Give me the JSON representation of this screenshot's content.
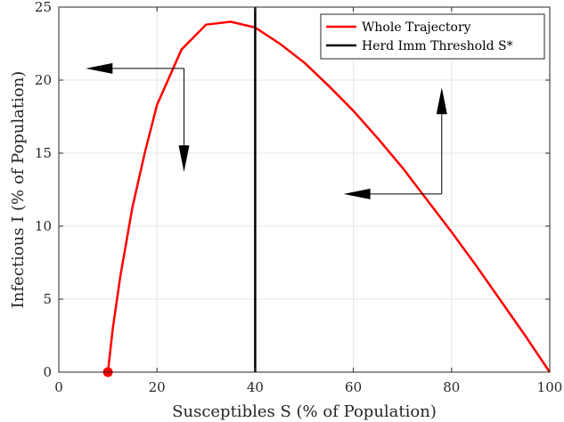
{
  "chart_data": {
    "type": "line",
    "xlabel": "Susceptibles S (% of Population)",
    "ylabel": "Infectious I (% of Population)",
    "xlim": [
      0,
      100
    ],
    "ylim": [
      0,
      25
    ],
    "x_ticks": [
      "0",
      "20",
      "40",
      "60",
      "80",
      "100"
    ],
    "y_ticks": [
      "0",
      "5",
      "10",
      "15",
      "20",
      "25"
    ],
    "grid": true,
    "legend_position": "top-right",
    "series": [
      {
        "name": "Whole Trajectory",
        "color": "#ff0000",
        "x": [
          100,
          95,
          90,
          85,
          80,
          75,
          70,
          65,
          60,
          55,
          50,
          45,
          40,
          35,
          30,
          25,
          20,
          17.5,
          15,
          12.5,
          11,
          10
        ],
        "y": [
          0,
          2.5,
          4.9,
          7.3,
          9.6,
          11.8,
          14.0,
          16.0,
          17.9,
          19.6,
          21.2,
          22.5,
          23.6,
          24.0,
          23.8,
          22.1,
          18.3,
          15.0,
          11.3,
          6.5,
          3.0,
          0
        ]
      },
      {
        "name": "Herd Imm Threshold S*",
        "color": "#000000",
        "x": [
          40,
          40
        ],
        "y": [
          0,
          26
        ]
      }
    ],
    "endpoint_marker": {
      "x": 10,
      "y": 0,
      "color": "#ff0000"
    },
    "arrows": [
      {
        "from": [
          25.5,
          20.8
        ],
        "to": [
          5.5,
          20.8
        ]
      },
      {
        "from": [
          25.5,
          20.8
        ],
        "to": [
          25.5,
          13.7
        ]
      },
      {
        "from": [
          78,
          12.2
        ],
        "to": [
          58,
          12.2
        ]
      },
      {
        "from": [
          78,
          12.2
        ],
        "to": [
          78,
          19.5
        ]
      }
    ]
  }
}
